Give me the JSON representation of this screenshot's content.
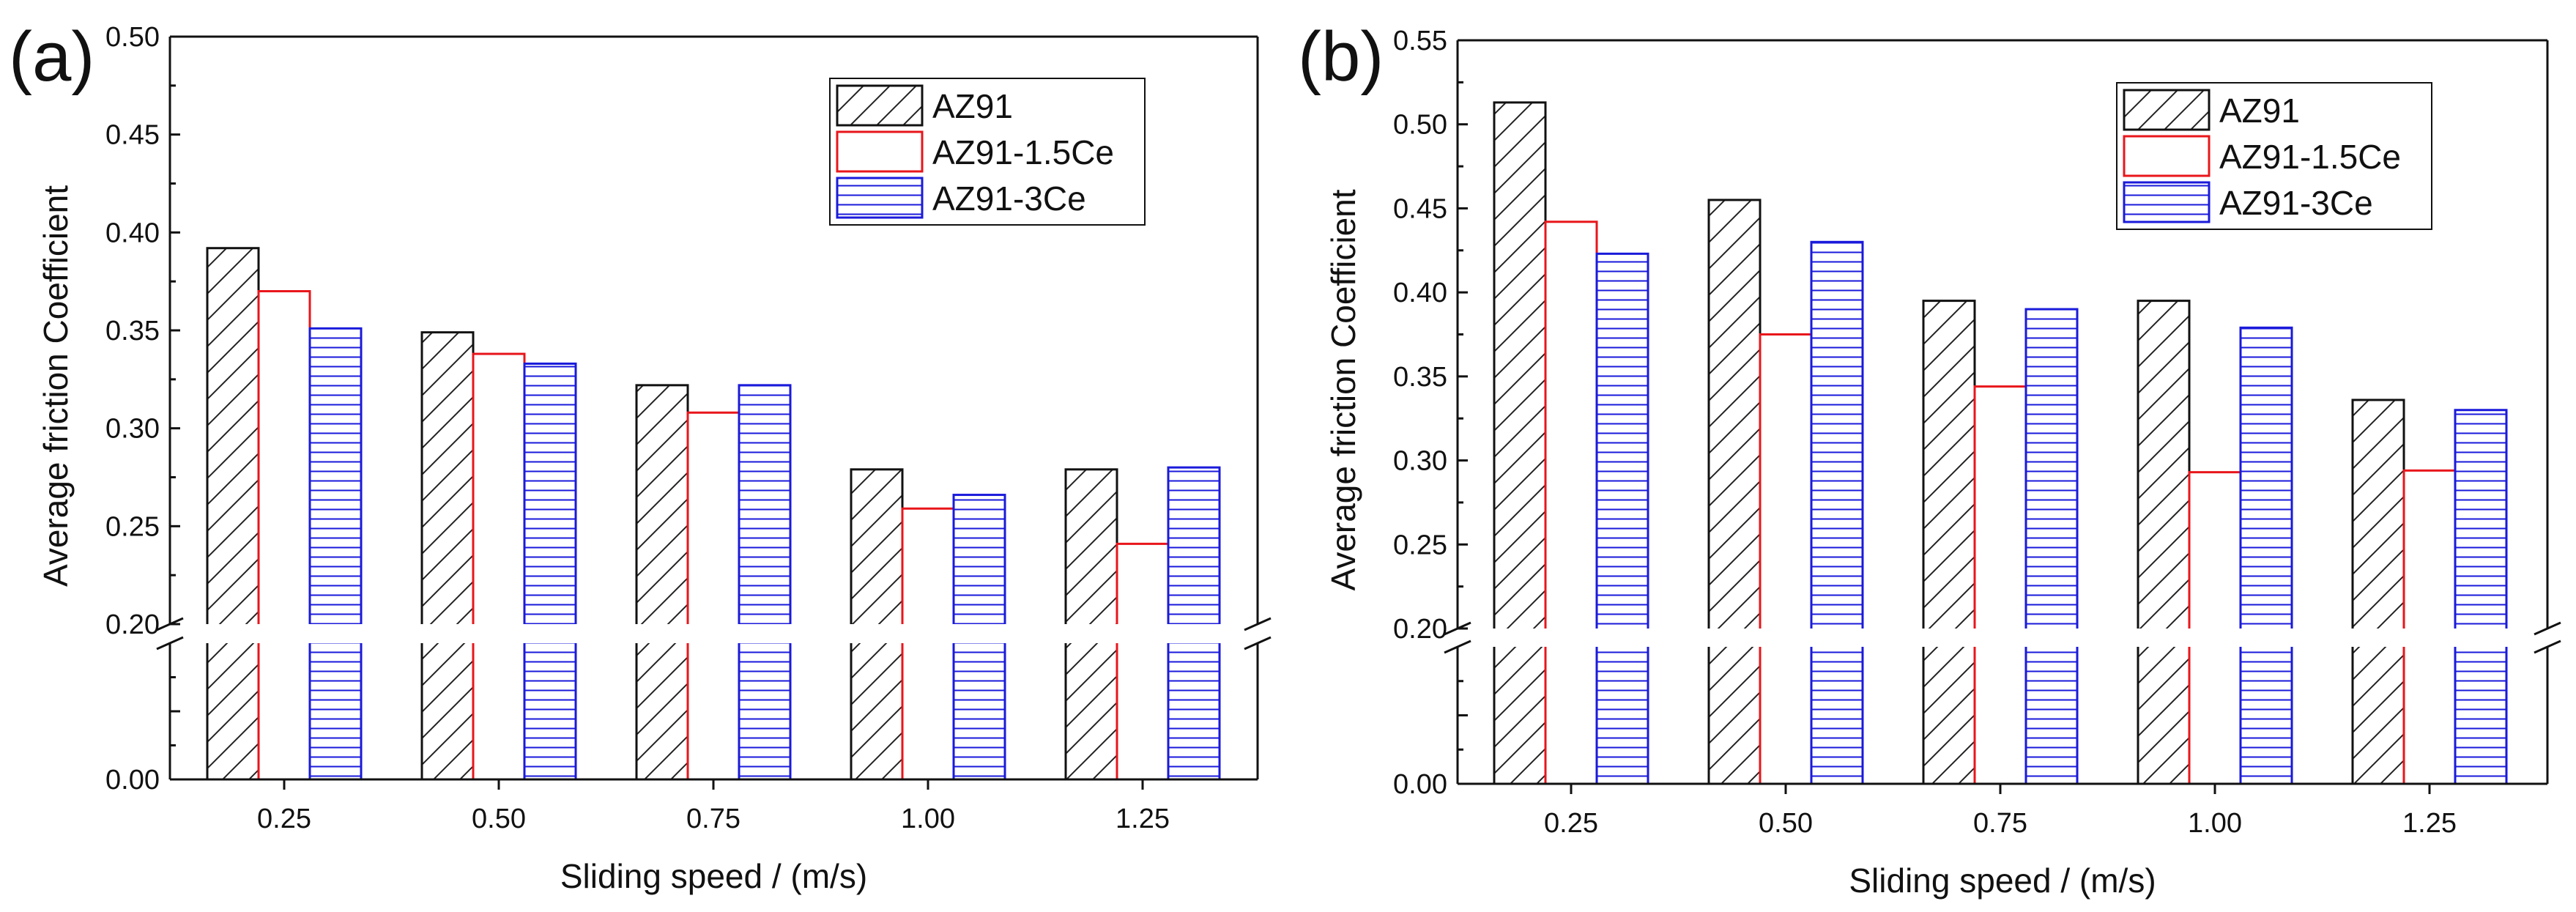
{
  "chart_data": [
    {
      "panel_label": "(a)",
      "type": "bar",
      "categories": [
        "0.25",
        "0.50",
        "0.75",
        "1.00",
        "1.25"
      ],
      "series": [
        {
          "name": "AZ91",
          "values": [
            0.392,
            0.349,
            0.322,
            0.279,
            0.279
          ]
        },
        {
          "name": "AZ91-1.5Ce",
          "values": [
            0.37,
            0.338,
            0.308,
            0.259,
            0.241
          ]
        },
        {
          "name": "AZ91-3Ce",
          "values": [
            0.351,
            0.333,
            0.322,
            0.266,
            0.28
          ]
        }
      ],
      "xlabel": "Sliding speed / (m/s)",
      "ylabel": "Average friction Coefficient",
      "ylim": [
        0.0,
        0.5
      ],
      "axis_break": [
        0.0,
        0.2
      ],
      "yticks_upper": [
        "0.20",
        "0.25",
        "0.30",
        "0.35",
        "0.40",
        "0.45",
        "0.50"
      ],
      "yticks_lower": [
        "0.00"
      ],
      "legend_position": "top-right"
    },
    {
      "panel_label": "(b)",
      "type": "bar",
      "categories": [
        "0.25",
        "0.50",
        "0.75",
        "1.00",
        "1.25"
      ],
      "series": [
        {
          "name": "AZ91",
          "values": [
            0.513,
            0.455,
            0.395,
            0.395,
            0.336
          ]
        },
        {
          "name": "AZ91-1.5Ce",
          "values": [
            0.442,
            0.375,
            0.344,
            0.293,
            0.294
          ]
        },
        {
          "name": "AZ91-3Ce",
          "values": [
            0.423,
            0.43,
            0.39,
            0.379,
            0.33
          ]
        }
      ],
      "xlabel": "Sliding speed / (m/s)",
      "ylabel": "Average friction Coefficient",
      "ylim": [
        0.0,
        0.55
      ],
      "axis_break": [
        0.0,
        0.2
      ],
      "yticks_upper": [
        "0.20",
        "0.25",
        "0.30",
        "0.35",
        "0.40",
        "0.45",
        "0.50",
        "0.55"
      ],
      "yticks_lower": [
        "0.00"
      ],
      "legend_position": "top-right"
    }
  ],
  "colors": {
    "AZ91": "#111111",
    "AZ91-1.5Ce": "#e8161b",
    "AZ91-3Ce": "#1a1adb"
  }
}
